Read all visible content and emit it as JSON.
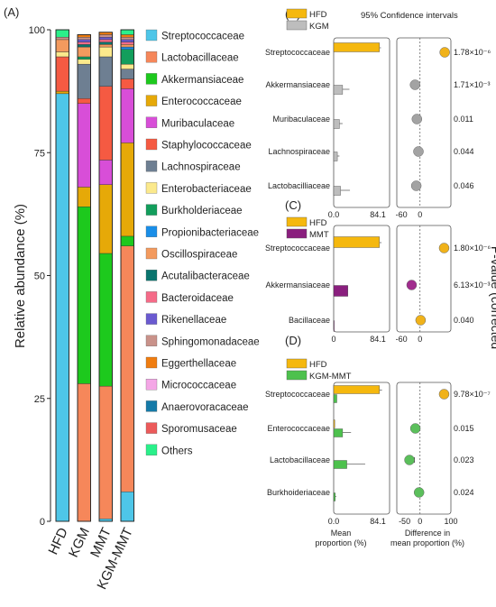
{
  "panel_letters": {
    "a": "(A)",
    "b": "(B)",
    "c": "(C)",
    "d": "(D)"
  },
  "colors": {
    "Streptococcaceae": "#4ec6e8",
    "Lactobacillaceae": "#f6875a",
    "Akkermansiaceae": "#1dc91d",
    "Enterococcaceae": "#e6a908",
    "Muribaculaceae": "#d84ed8",
    "Staphylococcaceae": "#f55a42",
    "Lachnospiraceae": "#6e7f92",
    "Enterobacteriaceae": "#fbe98c",
    "Burkholderiaceae": "#129e5c",
    "Propionibacteriaceae": "#198ee8",
    "Oscillospiraceae": "#f39a5e",
    "Acutalibacteraceae": "#0a756e",
    "Bacteroidaceae": "#f56b88",
    "Rikenellaceae": "#6a5ad0",
    "Sphingomonadaceae": "#c9928a",
    "Eggerthellaceae": "#f07d10",
    "Micrococcaceae": "#f4a6e6",
    "Anaerovoracaceae": "#157aa8",
    "Sporomusaceae": "#ec5a5a",
    "Others": "#2af08a",
    "HFD": "#f5b80e",
    "KGM": "#bdbdbd",
    "MMT": "#8a1f7e",
    "KGM-MMT": "#4dc14d",
    "HFD_dot": "#f0b21a",
    "KGM_dot": "#a3a3a3",
    "MMT_dot": "#a12d8e",
    "KGMMMT_dot": "#5bbf5b"
  },
  "chart_data": [
    {
      "type": "bar",
      "stacked": true,
      "ylabel": "Relative abundance (%)",
      "ylim": [
        0,
        100
      ],
      "yticks": [
        "0",
        "25",
        "50",
        "75",
        "100"
      ],
      "categories": [
        "HFD",
        "KGM",
        "MMT",
        "KGM-MMT"
      ],
      "legend_placement": "right",
      "series": [
        {
          "name": "Streptococcaceae",
          "values": [
            87,
            0,
            0.5,
            6
          ]
        },
        {
          "name": "Lactobacillaceae",
          "values": [
            0,
            28,
            27,
            50
          ]
        },
        {
          "name": "Akkermansiaceae",
          "values": [
            0,
            36,
            27,
            2
          ]
        },
        {
          "name": "Enterococcaceae",
          "values": [
            0.5,
            4,
            14,
            19
          ]
        },
        {
          "name": "Muribaculaceae",
          "values": [
            0,
            17,
            5,
            11
          ]
        },
        {
          "name": "Staphylococcaceae",
          "values": [
            7,
            1,
            15,
            2
          ]
        },
        {
          "name": "Lachnospiraceae",
          "values": [
            0,
            7,
            6,
            2
          ]
        },
        {
          "name": "Enterobacteriaceae",
          "values": [
            1,
            1,
            2,
            1
          ]
        },
        {
          "name": "Burkholderiaceae",
          "values": [
            0,
            0.5,
            0,
            3
          ]
        },
        {
          "name": "Propionibacteriaceae",
          "values": [
            0,
            0,
            0,
            0.5
          ]
        },
        {
          "name": "Oscillospiraceae",
          "values": [
            2.5,
            2,
            0.5,
            0.5
          ]
        },
        {
          "name": "Acutalibacteraceae",
          "values": [
            0,
            0.5,
            0.5,
            0
          ]
        },
        {
          "name": "Bacteroidaceae",
          "values": [
            0,
            0.5,
            0.5,
            0.5
          ]
        },
        {
          "name": "Rikenellaceae",
          "values": [
            0,
            0.5,
            0.5,
            0.5
          ]
        },
        {
          "name": "Sphingomonadaceae",
          "values": [
            0.5,
            0.5,
            0.5,
            0.5
          ]
        },
        {
          "name": "Eggerthellaceae",
          "values": [
            0,
            0.5,
            0.5,
            0.5
          ]
        },
        {
          "name": "Micrococcaceae",
          "values": [
            0,
            0,
            0,
            0
          ]
        },
        {
          "name": "Anaerovoracaceae",
          "values": [
            0,
            0,
            0,
            0
          ]
        },
        {
          "name": "Sporomusaceae",
          "values": [
            0,
            0,
            0,
            0
          ]
        },
        {
          "name": "Others",
          "values": [
            1.5,
            0,
            0,
            1
          ]
        }
      ]
    },
    {
      "type": "bar",
      "orientation": "horizontal",
      "panel": "B",
      "header": "95% Confidence intervals",
      "groups": [
        "HFD",
        "KGM"
      ],
      "categories": [
        "Streptococcaceae",
        "Akkermansiaceae",
        "Muribaculaceae",
        "Lachnospiraceae",
        "Lactobacilliaceae"
      ],
      "mean_proportion": {
        "HFD": [
          87,
          0,
          0,
          0,
          0
        ],
        "KGM": [
          0,
          17,
          11,
          7,
          13
        ]
      },
      "mean_error": [
        3,
        13,
        6,
        4,
        18
      ],
      "mean_xlim": [
        0,
        84.1
      ],
      "mean_ticks": [
        "0.0",
        "84.1"
      ],
      "diff": [
        80,
        -16,
        -10,
        -5,
        -12
      ],
      "diff_ci_low": [
        72,
        -24,
        -16,
        -5,
        -22
      ],
      "diff_ci_high": [
        88,
        -10,
        -4,
        -5,
        -4
      ],
      "diff_xlim": [
        -75,
        100
      ],
      "diff_ticks": [
        "-60",
        "0"
      ],
      "pvalues": [
        "1.78×10⁻⁶",
        "1.71×10⁻³",
        "0.011",
        "0.044",
        "0.046"
      ]
    },
    {
      "type": "bar",
      "orientation": "horizontal",
      "panel": "C",
      "groups": [
        "HFD",
        "MMT"
      ],
      "categories": [
        "Streptococcaceae",
        "Akkermansiaceae",
        "Bacillaceae"
      ],
      "mean_proportion": {
        "HFD": [
          87,
          0,
          0
        ],
        "MMT": [
          0,
          27,
          1
        ]
      },
      "mean_error": [
        4,
        0,
        0
      ],
      "mean_xlim": [
        0,
        84.1
      ],
      "mean_ticks": [
        "0",
        "84.1"
      ],
      "diff": [
        78,
        -27,
        2
      ],
      "diff_ci_low": [
        70,
        -37,
        0
      ],
      "diff_ci_high": [
        86,
        -17,
        4
      ],
      "diff_xlim": [
        -75,
        100
      ],
      "diff_ticks": [
        "-60",
        "0"
      ],
      "pvalues": [
        "1.80×10⁻⁶",
        "6.13×10⁻³",
        "0.040"
      ]
    },
    {
      "type": "bar",
      "orientation": "horizontal",
      "panel": "D",
      "groups": [
        "HFD",
        "KGM-MMT"
      ],
      "categories": [
        "Streptococcaceae",
        "Enterococcaceae",
        "Lactobacillaceae",
        "Burkhoideriaceae"
      ],
      "mean_proportion": {
        "HFD": [
          87,
          2,
          0,
          0
        ],
        "KGM-MMT": [
          6,
          17,
          25,
          3
        ]
      },
      "mean_error": [
        5,
        16,
        35,
        2
      ],
      "mean_xlim": [
        0,
        84.1
      ],
      "mean_ticks": [
        "0.0",
        "84.1"
      ],
      "mean_xlabel": "Mean\nproportion (%)",
      "diff": [
        78,
        -15,
        -34,
        -3
      ],
      "diff_ci_low": [
        70,
        -24,
        -44,
        -3
      ],
      "diff_ci_high": [
        86,
        -6,
        -18,
        -3
      ],
      "diff_xlim": [
        -75,
        100
      ],
      "diff_ticks": [
        "-50",
        "0",
        "100"
      ],
      "diff_xlabel": "Difference in\nmean proportion (%)",
      "pvalues": [
        "9.78×10⁻⁷",
        "0.015",
        "0.023",
        "0.024"
      ],
      "pvalue_axis_label": "P-value (corrected"
    }
  ]
}
